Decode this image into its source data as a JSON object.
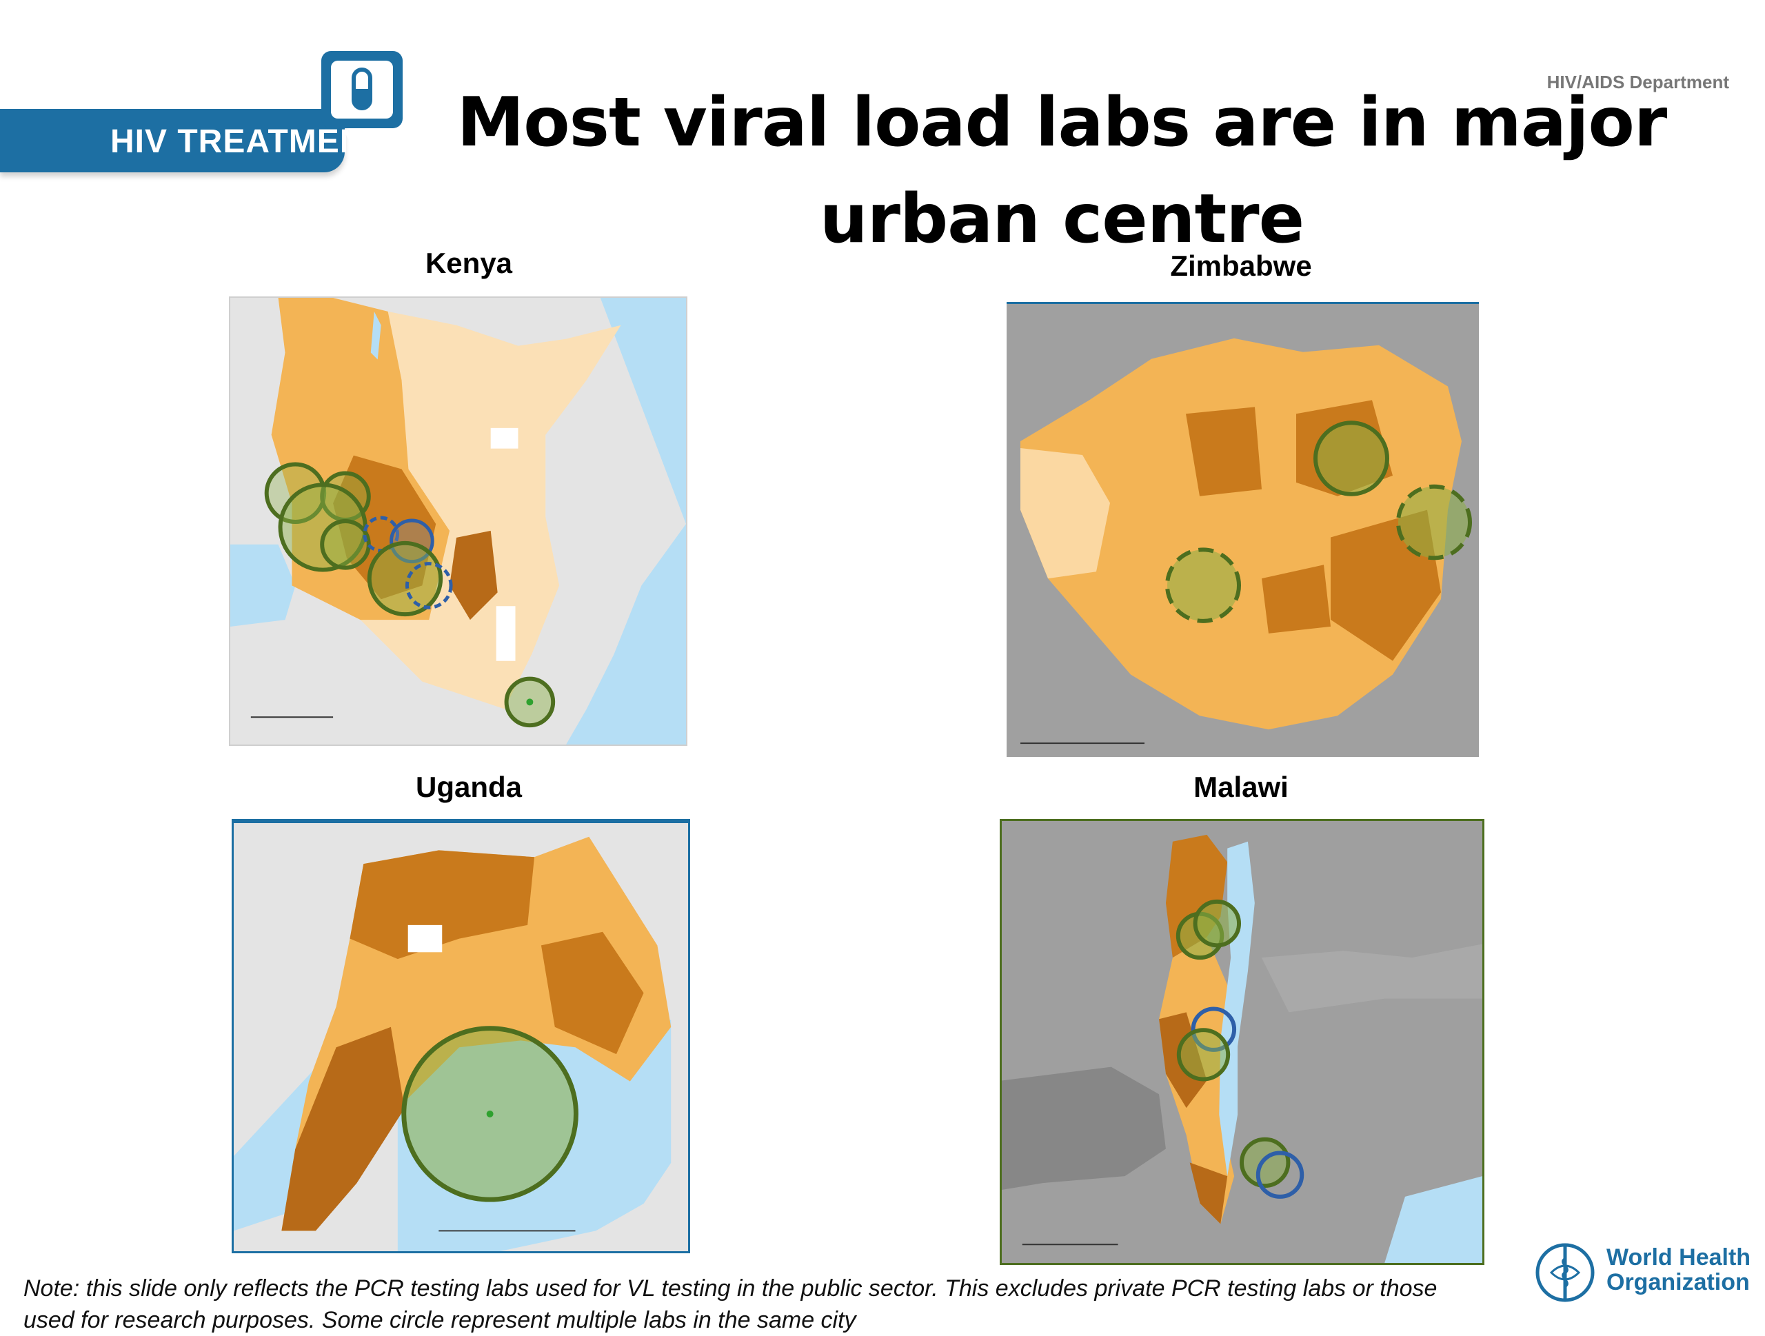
{
  "header": {
    "banner_label": "HIV TREATMENT",
    "department": "HIV/AIDS Department"
  },
  "title_lines": [
    "Most viral load labs are in major",
    "urban centre"
  ],
  "maps": {
    "kenya": {
      "label": "Kenya"
    },
    "zimbabwe": {
      "label": "Zimbabwe"
    },
    "uganda": {
      "label": "Uganda"
    },
    "malawi": {
      "label": "Malawi"
    }
  },
  "note_lines": [
    "Note: this slide only reflects the PCR testing labs used for VL testing in the public sector. This excludes private PCR testing labs or those",
    "used for research purposes. Some circle represent multiple labs in the same city"
  ],
  "footer": {
    "org_line1": "World Health",
    "org_line2": "Organization"
  },
  "colors": {
    "brand_blue": "#1d6fa3",
    "lab_circle_green": "#4d6e1f",
    "lab_circle_blue": "#2e5fa8",
    "map_orange": "#f3b455",
    "map_dark_orange": "#c97a1c",
    "water": "#b5def5",
    "land_neighbor": "#9a9a9a"
  },
  "icons": [
    "pill-icon",
    "who-emblem-icon"
  ]
}
